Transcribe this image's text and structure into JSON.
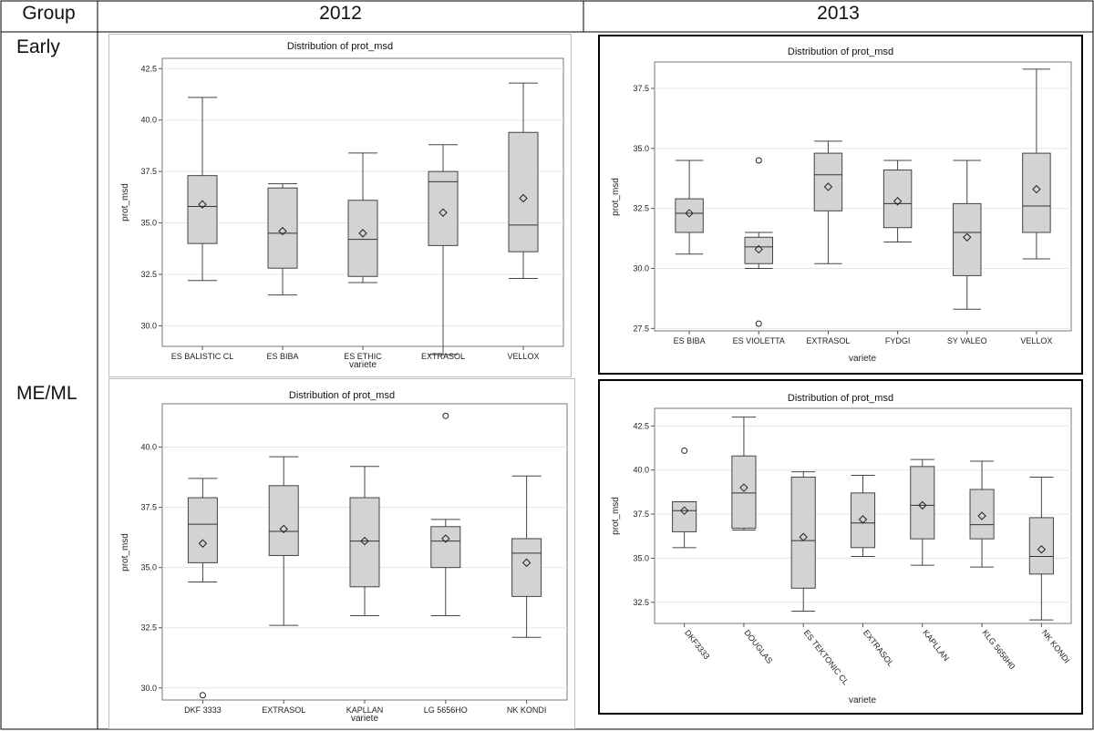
{
  "table": {
    "col_group": "Group",
    "col_2012": "2012",
    "col_2013": "2013",
    "row_early": "Early",
    "row_meml": "ME/ML"
  },
  "colors": {
    "box_fill": "#d3d3d3",
    "box_stroke": "#444444",
    "grid": "#e6e6e6"
  },
  "chart_data": [
    {
      "type": "box",
      "group": "Early",
      "year": "2012",
      "title": "Distribution of prot_msd",
      "xlabel": "variete",
      "ylabel": "prot_msd",
      "ylim": [
        29,
        43
      ],
      "yticks": [
        30.0,
        32.5,
        35.0,
        37.5,
        40.0,
        42.5
      ],
      "grid": true,
      "rotated_labels": false,
      "categories": [
        "ES BALISTIC CL",
        "ES BIBA",
        "ES ETHIC",
        "EXTRASOL",
        "VELLOX"
      ],
      "boxes": [
        {
          "min": 32.2,
          "q1": 34.0,
          "median": 35.8,
          "q3": 37.3,
          "max": 41.1,
          "mean": 35.9,
          "outliers": []
        },
        {
          "min": 31.5,
          "q1": 32.8,
          "median": 34.5,
          "q3": 36.7,
          "max": 36.9,
          "mean": 34.6,
          "outliers": []
        },
        {
          "min": 32.1,
          "q1": 32.4,
          "median": 34.2,
          "q3": 36.1,
          "max": 38.4,
          "mean": 34.5,
          "outliers": []
        },
        {
          "min": 28.6,
          "q1": 33.9,
          "median": 37.0,
          "q3": 37.5,
          "max": 38.8,
          "mean": 35.5,
          "outliers": []
        },
        {
          "min": 32.3,
          "q1": 33.6,
          "median": 34.9,
          "q3": 39.4,
          "max": 41.8,
          "mean": 36.2,
          "outliers": []
        }
      ]
    },
    {
      "type": "box",
      "group": "Early",
      "year": "2013",
      "title": "Distribution of prot_msd",
      "xlabel": "variete",
      "ylabel": "prot_msd",
      "ylim": [
        27.4,
        38.6
      ],
      "yticks": [
        27.5,
        30.0,
        32.5,
        35.0,
        37.5
      ],
      "grid": true,
      "rotated_labels": false,
      "categories": [
        "ES BIBA",
        "ES VIOLETTA",
        "EXTRASOL",
        "FYDGI",
        "SY VALEO",
        "VELLOX"
      ],
      "boxes": [
        {
          "min": 30.6,
          "q1": 31.5,
          "median": 32.3,
          "q3": 32.9,
          "max": 34.5,
          "mean": 32.3,
          "outliers": []
        },
        {
          "min": 30.0,
          "q1": 30.2,
          "median": 30.9,
          "q3": 31.3,
          "max": 31.5,
          "mean": 30.8,
          "outliers": [
            34.5,
            27.7
          ]
        },
        {
          "min": 30.2,
          "q1": 32.4,
          "median": 33.9,
          "q3": 34.8,
          "max": 35.3,
          "mean": 33.4,
          "outliers": []
        },
        {
          "min": 31.1,
          "q1": 31.7,
          "median": 32.7,
          "q3": 34.1,
          "max": 34.5,
          "mean": 32.8,
          "outliers": []
        },
        {
          "min": 28.3,
          "q1": 29.7,
          "median": 31.5,
          "q3": 32.7,
          "max": 34.5,
          "mean": 31.3,
          "outliers": []
        },
        {
          "min": 30.4,
          "q1": 31.5,
          "median": 32.6,
          "q3": 34.8,
          "max": 38.3,
          "mean": 33.3,
          "outliers": []
        }
      ]
    },
    {
      "type": "box",
      "group": "ME/ML",
      "year": "2012",
      "title": "Distribution of prot_msd",
      "xlabel": "variete",
      "ylabel": "prot_msd",
      "ylim": [
        29.5,
        41.8
      ],
      "yticks": [
        30.0,
        32.5,
        35.0,
        37.5,
        40.0
      ],
      "grid": true,
      "rotated_labels": false,
      "categories": [
        "DKF 3333",
        "EXTRASOL",
        "KAPLLAN",
        "LG 5656HO",
        "NK KONDI"
      ],
      "boxes": [
        {
          "min": 34.4,
          "q1": 35.2,
          "median": 36.8,
          "q3": 37.9,
          "max": 38.7,
          "mean": 36.0,
          "outliers": [
            29.7
          ]
        },
        {
          "min": 32.6,
          "q1": 35.5,
          "median": 36.5,
          "q3": 38.4,
          "max": 39.6,
          "mean": 36.6,
          "outliers": []
        },
        {
          "min": 33.0,
          "q1": 34.2,
          "median": 36.1,
          "q3": 37.9,
          "max": 39.2,
          "mean": 36.1,
          "outliers": []
        },
        {
          "min": 33.0,
          "q1": 35.0,
          "median": 36.1,
          "q3": 36.7,
          "max": 37.0,
          "mean": 36.2,
          "outliers": [
            41.3
          ]
        },
        {
          "min": 32.1,
          "q1": 33.8,
          "median": 35.6,
          "q3": 36.2,
          "max": 38.8,
          "mean": 35.2,
          "outliers": []
        }
      ]
    },
    {
      "type": "box",
      "group": "ME/ML",
      "year": "2013",
      "title": "Distribution of prot_msd",
      "xlabel": "variete",
      "ylabel": "prot_msd",
      "ylim": [
        31.3,
        43.5
      ],
      "yticks": [
        32.5,
        35.0,
        37.5,
        40.0,
        42.5
      ],
      "grid": true,
      "rotated_labels": true,
      "categories": [
        "DKF3333",
        "DOUGLAS",
        "ES TEKTONIC CL",
        "EXTRASOL",
        "KAPLLAN",
        "KLG 5656H0",
        "NK KONDI"
      ],
      "boxes": [
        {
          "min": 35.6,
          "q1": 36.5,
          "median": 37.7,
          "q3": 38.2,
          "max": 38.2,
          "mean": 37.7,
          "outliers": [
            41.1
          ]
        },
        {
          "min": 36.6,
          "q1": 36.7,
          "median": 38.7,
          "q3": 40.8,
          "max": 43.0,
          "mean": 39.0,
          "outliers": []
        },
        {
          "min": 32.0,
          "q1": 33.3,
          "median": 36.0,
          "q3": 39.6,
          "max": 39.9,
          "mean": 36.2,
          "outliers": []
        },
        {
          "min": 35.1,
          "q1": 35.6,
          "median": 37.0,
          "q3": 38.7,
          "max": 39.7,
          "mean": 37.2,
          "outliers": []
        },
        {
          "min": 34.6,
          "q1": 36.1,
          "median": 38.0,
          "q3": 40.2,
          "max": 40.6,
          "mean": 38.0,
          "outliers": []
        },
        {
          "min": 34.5,
          "q1": 36.1,
          "median": 36.9,
          "q3": 38.9,
          "max": 40.5,
          "mean": 37.4,
          "outliers": []
        },
        {
          "min": 31.5,
          "q1": 34.1,
          "median": 35.1,
          "q3": 37.3,
          "max": 39.6,
          "mean": 35.5,
          "outliers": []
        }
      ]
    }
  ]
}
